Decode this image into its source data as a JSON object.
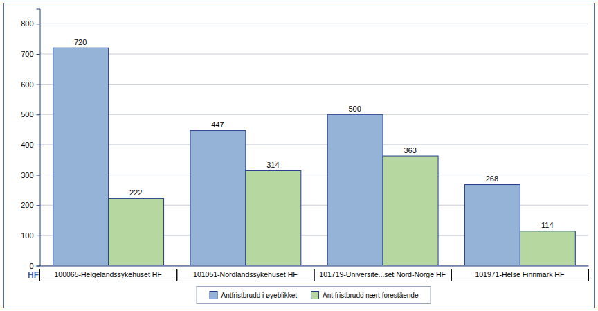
{
  "chart_data": {
    "type": "bar",
    "x_label": "HF",
    "categories": [
      "100065-Helgelandssykehuset HF",
      "101051-Nordlandssykehuset HF",
      "101719-Universite...set Nord-Norge HF",
      "101971-Helse Finnmark HF"
    ],
    "series": [
      {
        "name": "Antfristbrudd i øyeblikket",
        "color": "#95b3d7",
        "values": [
          720,
          447,
          500,
          268
        ]
      },
      {
        "name": "Ant fristbrudd nært forestående",
        "color": "#b6d7a0",
        "values": [
          222,
          314,
          363,
          114
        ]
      }
    ],
    "ylim": [
      0,
      850
    ],
    "yticks": [
      0,
      100,
      200,
      300,
      400,
      500,
      600,
      700,
      800
    ],
    "grid": true,
    "data_labels": true,
    "legend": "bottom"
  }
}
